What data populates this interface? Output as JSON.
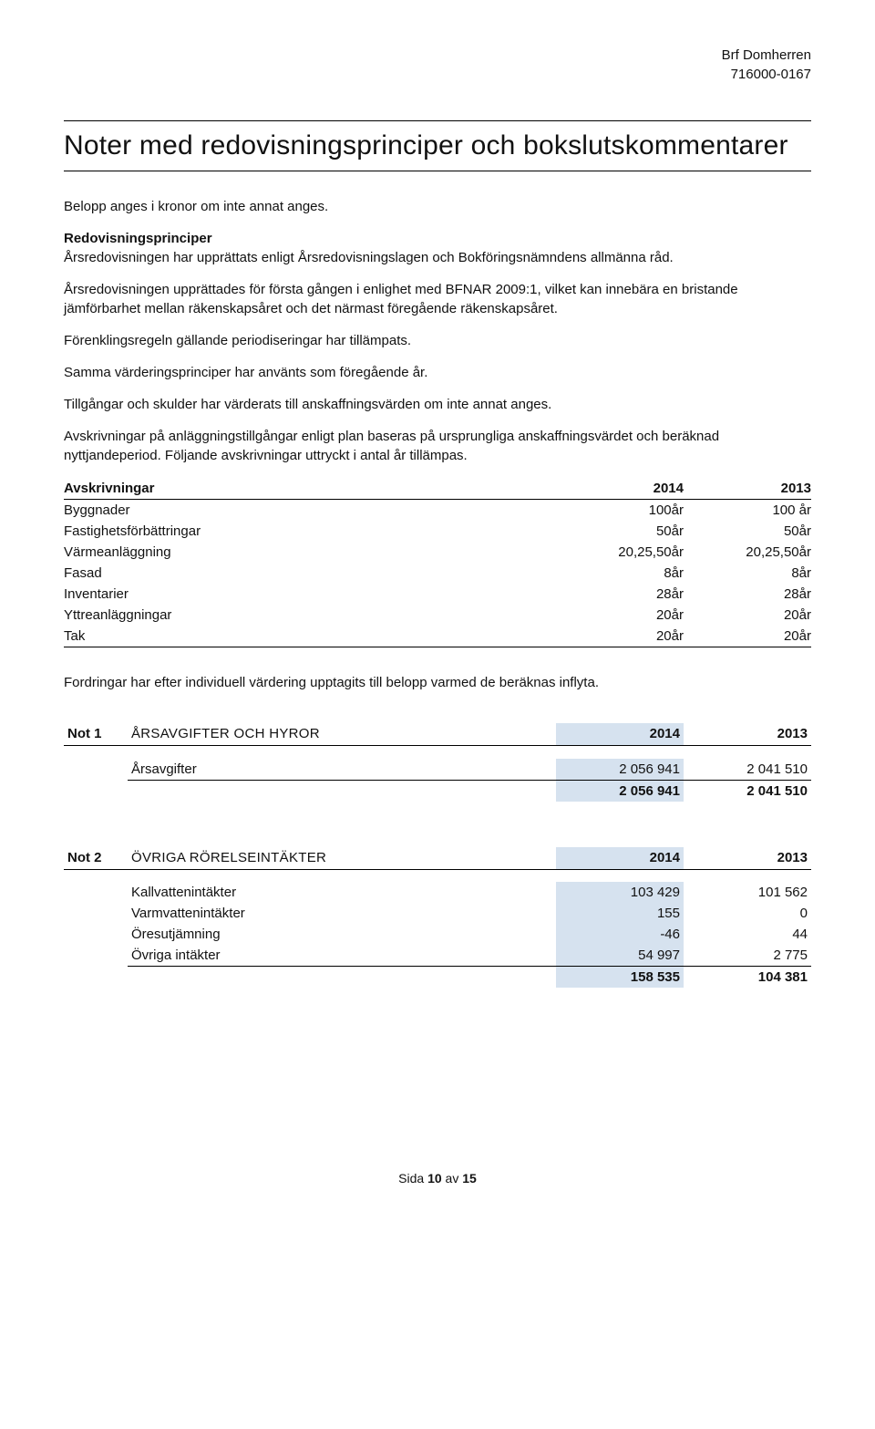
{
  "header": {
    "org_name": "Brf Domherren",
    "org_id": "716000-0167"
  },
  "title": "Noter med redovisningsprinciper och bokslutskommentarer",
  "intro": "Belopp anges i kronor om inte annat anges.",
  "principles_heading": "Redovisningsprinciper",
  "p1": "Årsredovisningen har upprättats enligt Årsredovisningslagen och Bokföringsnämndens allmänna råd.",
  "p2": "Årsredovisningen upprättades för första gången i enlighet med BFNAR 2009:1, vilket kan innebära en bristande jämförbarhet mellan räkenskapsåret och det närmast föregående räkenskapsåret.",
  "p3": "Förenklingsregeln gällande periodiseringar har tillämpats.",
  "p4": "Samma värderingsprinciper har använts som föregående år.",
  "p5": "Tillgångar och skulder har värderats till anskaffningsvärden om inte annat anges.",
  "p6": "Avskrivningar på anläggningstillgångar enligt plan baseras på ursprungliga anskaffningsvärdet och beräknad nyttjandeperiod. Följande avskrivningar uttryckt i antal år tillämpas.",
  "avskr": {
    "header_label": "Avskrivningar",
    "year1": "2014",
    "year2": "2013",
    "rows": [
      {
        "label": "Byggnader",
        "y1": "100år",
        "y2": "100 år"
      },
      {
        "label": "Fastighetsförbättringar",
        "y1": "50år",
        "y2": "50år"
      },
      {
        "label": "Värmeanläggning",
        "y1": "20,25,50år",
        "y2": "20,25,50år"
      },
      {
        "label": "Fasad",
        "y1": "8år",
        "y2": "8år"
      },
      {
        "label": "Inventarier",
        "y1": "28år",
        "y2": "28år"
      },
      {
        "label": "Yttreanläggningar",
        "y1": "20år",
        "y2": "20år"
      },
      {
        "label": "Tak",
        "y1": "20år",
        "y2": "20år"
      }
    ]
  },
  "fordringar": "Fordringar har efter individuell värdering upptagits till belopp varmed de beräknas inflyta.",
  "note1": {
    "tag": "Not 1",
    "title": "ÅRSAVGIFTER OCH HYROR",
    "year1": "2014",
    "year2": "2013",
    "rows": [
      {
        "label": "Årsavgifter",
        "y1": "2 056 941",
        "y2": "2 041 510"
      }
    ],
    "sum": {
      "y1": "2 056 941",
      "y2": "2 041 510"
    }
  },
  "note2": {
    "tag": "Not 2",
    "title": "ÖVRIGA RÖRELSEINTÄKTER",
    "year1": "2014",
    "year2": "2013",
    "rows": [
      {
        "label": "Kallvattenintäkter",
        "y1": "103 429",
        "y2": "101 562"
      },
      {
        "label": "Varmvattenintäkter",
        "y1": "155",
        "y2": "0"
      },
      {
        "label": "Öresutjämning",
        "y1": "-46",
        "y2": "44"
      },
      {
        "label": "Övriga intäkter",
        "y1": "54 997",
        "y2": "2 775"
      }
    ],
    "sum": {
      "y1": "158 535",
      "y2": "104 381"
    }
  },
  "footer": {
    "prefix": "Sida ",
    "page": "10",
    "mid": " av ",
    "total": "15"
  },
  "colors": {
    "highlight": "#d6e2ef",
    "text": "#111111",
    "background": "#ffffff",
    "rule": "#000000"
  },
  "fonts": {
    "body_size_pt": 11,
    "title_size_pt": 22,
    "title_weight": 300
  }
}
